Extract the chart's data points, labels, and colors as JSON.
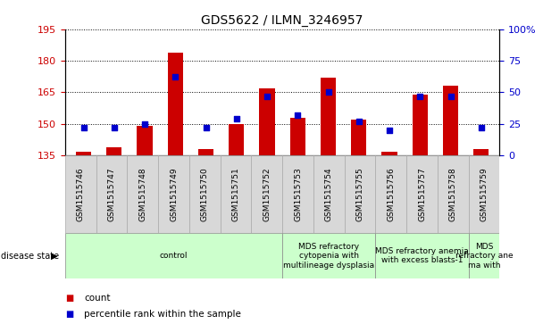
{
  "title": "GDS5622 / ILMN_3246957",
  "samples": [
    "GSM1515746",
    "GSM1515747",
    "GSM1515748",
    "GSM1515749",
    "GSM1515750",
    "GSM1515751",
    "GSM1515752",
    "GSM1515753",
    "GSM1515754",
    "GSM1515755",
    "GSM1515756",
    "GSM1515757",
    "GSM1515758",
    "GSM1515759"
  ],
  "counts": [
    137,
    139,
    149,
    184,
    138,
    150,
    167,
    153,
    172,
    152,
    137,
    164,
    168,
    138
  ],
  "percentile_ranks": [
    22,
    22,
    25,
    62,
    22,
    29,
    47,
    32,
    50,
    27,
    20,
    47,
    47,
    22
  ],
  "ylim_left": [
    135,
    195
  ],
  "ylim_right": [
    0,
    100
  ],
  "yticks_left": [
    135,
    150,
    165,
    180,
    195
  ],
  "yticks_right": [
    0,
    25,
    50,
    75,
    100
  ],
  "bar_color": "#cc0000",
  "marker_color": "#0000cc",
  "bar_bottom": 135,
  "disease_groups": [
    {
      "label": "control",
      "start": 0,
      "end": 7
    },
    {
      "label": "MDS refractory\ncytopenia with\nmultilineage dysplasia",
      "start": 7,
      "end": 10
    },
    {
      "label": "MDS refractory anemia\nwith excess blasts-1",
      "start": 10,
      "end": 13
    },
    {
      "label": "MDS\nrefractory ane\nma with",
      "start": 13,
      "end": 14
    }
  ],
  "legend_count_label": "count",
  "legend_pct_label": "percentile rank within the sample",
  "disease_state_label": "disease state",
  "disease_color": "#ccffcc",
  "sample_box_color": "#d8d8d8",
  "bg_color": "#ffffff",
  "tick_label_color_left": "#cc0000",
  "tick_label_color_right": "#0000cc",
  "title_fontsize": 10,
  "axis_fontsize": 8,
  "sample_fontsize": 6.5,
  "disease_fontsize": 6.5,
  "legend_fontsize": 7.5
}
